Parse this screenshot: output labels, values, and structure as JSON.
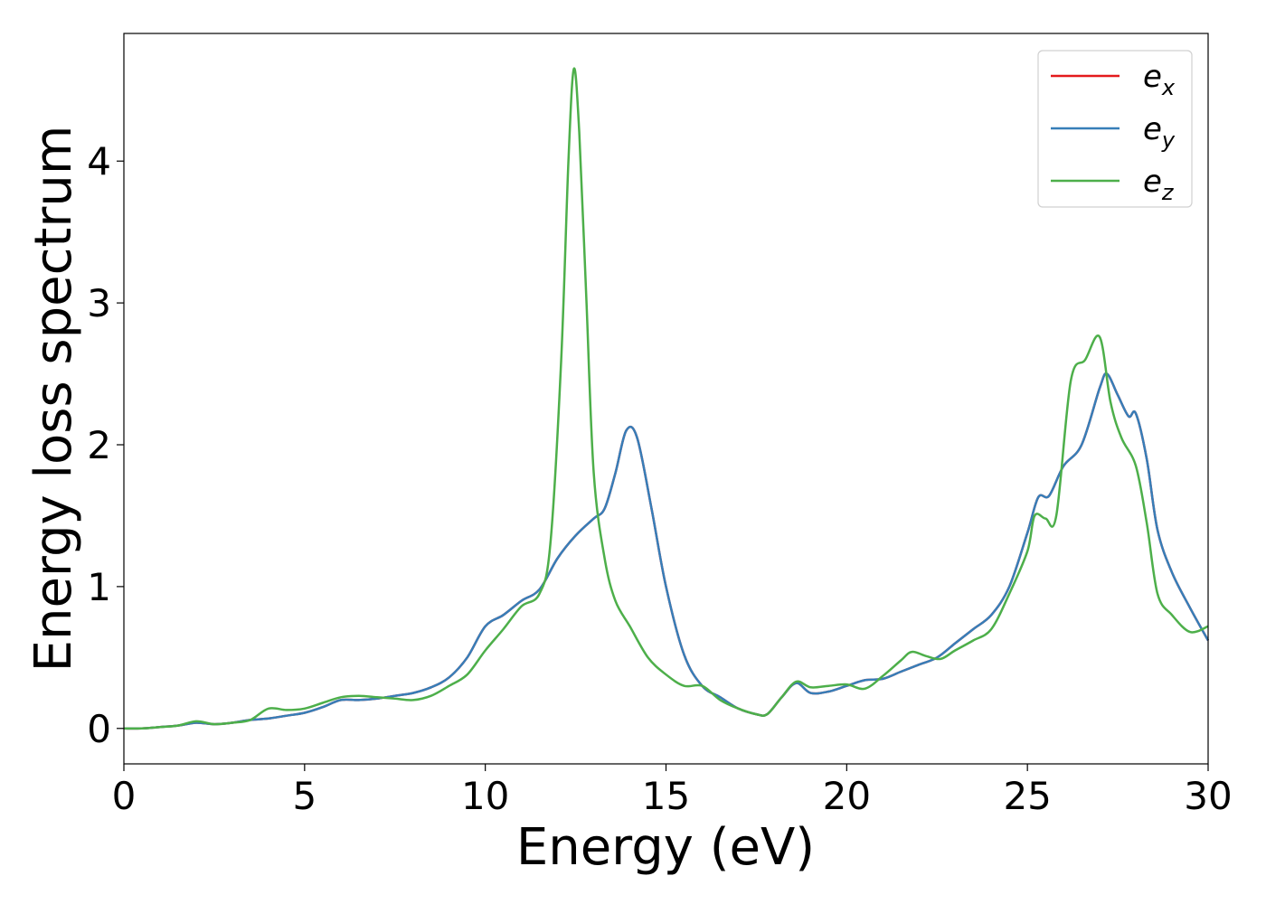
{
  "chart_data": {
    "type": "line",
    "title": "",
    "xlabel": "Energy (eV)",
    "ylabel": "Energy loss spectrum",
    "xlim": [
      0,
      30
    ],
    "ylim": [
      -0.25,
      4.9
    ],
    "xticks": [
      0,
      5,
      10,
      15,
      20,
      25,
      30
    ],
    "yticks": [
      0,
      1,
      2,
      3,
      4
    ],
    "grid": false,
    "legend_position": "top-right",
    "series": [
      {
        "name": "e_x",
        "label_base": "e",
        "label_sub": "x",
        "color": "#e41a1c",
        "x": [
          0,
          0.5,
          1,
          1.5,
          2,
          2.5,
          3,
          3.5,
          4,
          4.5,
          5,
          5.5,
          6,
          6.5,
          7,
          7.5,
          8,
          8.5,
          9,
          9.5,
          10,
          10.5,
          11,
          11.5,
          12,
          12.5,
          13,
          13.3,
          13.6,
          13.9,
          14.2,
          14.6,
          15,
          15.5,
          16,
          16.5,
          17,
          17.5,
          17.8,
          18.2,
          18.6,
          19,
          19.5,
          20,
          20.5,
          21,
          21.5,
          22,
          22.5,
          23,
          23.5,
          24,
          24.5,
          25,
          25.3,
          25.6,
          26,
          26.5,
          27,
          27.2,
          27.5,
          27.8,
          28,
          28.3,
          28.6,
          29,
          29.5,
          30
        ],
        "values": [
          0.0,
          0.0,
          0.01,
          0.02,
          0.04,
          0.03,
          0.04,
          0.06,
          0.07,
          0.09,
          0.11,
          0.15,
          0.2,
          0.2,
          0.21,
          0.23,
          0.25,
          0.29,
          0.36,
          0.5,
          0.72,
          0.8,
          0.9,
          0.98,
          1.2,
          1.36,
          1.48,
          1.55,
          1.8,
          2.1,
          2.05,
          1.55,
          1.0,
          0.52,
          0.3,
          0.22,
          0.14,
          0.1,
          0.1,
          0.22,
          0.32,
          0.25,
          0.26,
          0.3,
          0.34,
          0.35,
          0.4,
          0.45,
          0.5,
          0.6,
          0.7,
          0.8,
          1.0,
          1.38,
          1.63,
          1.64,
          1.85,
          2.0,
          2.4,
          2.5,
          2.35,
          2.2,
          2.22,
          1.9,
          1.4,
          1.1,
          0.85,
          0.62
        ]
      },
      {
        "name": "e_y",
        "label_base": "e",
        "label_sub": "y",
        "color": "#377eb8",
        "x": [
          0,
          0.5,
          1,
          1.5,
          2,
          2.5,
          3,
          3.5,
          4,
          4.5,
          5,
          5.5,
          6,
          6.5,
          7,
          7.5,
          8,
          8.5,
          9,
          9.5,
          10,
          10.5,
          11,
          11.5,
          12,
          12.5,
          13,
          13.3,
          13.6,
          13.9,
          14.2,
          14.6,
          15,
          15.5,
          16,
          16.5,
          17,
          17.5,
          17.8,
          18.2,
          18.6,
          19,
          19.5,
          20,
          20.5,
          21,
          21.5,
          22,
          22.5,
          23,
          23.5,
          24,
          24.5,
          25,
          25.3,
          25.6,
          26,
          26.5,
          27,
          27.2,
          27.5,
          27.8,
          28,
          28.3,
          28.6,
          29,
          29.5,
          30
        ],
        "values": [
          0.0,
          0.0,
          0.01,
          0.02,
          0.04,
          0.03,
          0.04,
          0.06,
          0.07,
          0.09,
          0.11,
          0.15,
          0.2,
          0.2,
          0.21,
          0.23,
          0.25,
          0.29,
          0.36,
          0.5,
          0.72,
          0.8,
          0.9,
          0.98,
          1.2,
          1.36,
          1.48,
          1.55,
          1.8,
          2.1,
          2.05,
          1.55,
          1.0,
          0.52,
          0.3,
          0.22,
          0.14,
          0.1,
          0.1,
          0.22,
          0.32,
          0.25,
          0.26,
          0.3,
          0.34,
          0.35,
          0.4,
          0.45,
          0.5,
          0.6,
          0.7,
          0.8,
          1.0,
          1.38,
          1.63,
          1.64,
          1.85,
          2.0,
          2.4,
          2.5,
          2.35,
          2.2,
          2.22,
          1.9,
          1.4,
          1.1,
          0.85,
          0.62
        ]
      },
      {
        "name": "e_z",
        "label_base": "e",
        "label_sub": "z",
        "color": "#4daf4a",
        "x": [
          0,
          0.5,
          1,
          1.5,
          2,
          2.5,
          3,
          3.5,
          4,
          4.5,
          5,
          5.5,
          6,
          6.5,
          7,
          7.5,
          8,
          8.5,
          9,
          9.5,
          10,
          10.5,
          11,
          11.5,
          11.8,
          12.1,
          12.3,
          12.45,
          12.6,
          12.8,
          13,
          13.3,
          13.6,
          14,
          14.5,
          15,
          15.5,
          16,
          16.5,
          17,
          17.5,
          17.8,
          18.2,
          18.6,
          19,
          19.5,
          20,
          20.5,
          21,
          21.5,
          21.8,
          22.2,
          22.6,
          23,
          23.5,
          24,
          24.5,
          25,
          25.2,
          25.5,
          25.8,
          26.2,
          26.6,
          27,
          27.3,
          27.6,
          28,
          28.3,
          28.6,
          29,
          29.5,
          30
        ],
        "values": [
          0.0,
          0.0,
          0.01,
          0.02,
          0.05,
          0.03,
          0.04,
          0.06,
          0.14,
          0.13,
          0.14,
          0.18,
          0.22,
          0.23,
          0.22,
          0.21,
          0.2,
          0.23,
          0.3,
          0.38,
          0.55,
          0.7,
          0.86,
          0.95,
          1.3,
          2.6,
          4.0,
          4.65,
          4.2,
          3.0,
          1.8,
          1.2,
          0.9,
          0.72,
          0.5,
          0.38,
          0.3,
          0.3,
          0.2,
          0.14,
          0.1,
          0.1,
          0.22,
          0.33,
          0.29,
          0.3,
          0.31,
          0.28,
          0.37,
          0.48,
          0.54,
          0.51,
          0.49,
          0.55,
          0.62,
          0.7,
          0.95,
          1.25,
          1.5,
          1.48,
          1.5,
          2.45,
          2.6,
          2.76,
          2.3,
          2.05,
          1.85,
          1.45,
          0.95,
          0.8,
          0.68,
          0.72
        ]
      }
    ]
  }
}
